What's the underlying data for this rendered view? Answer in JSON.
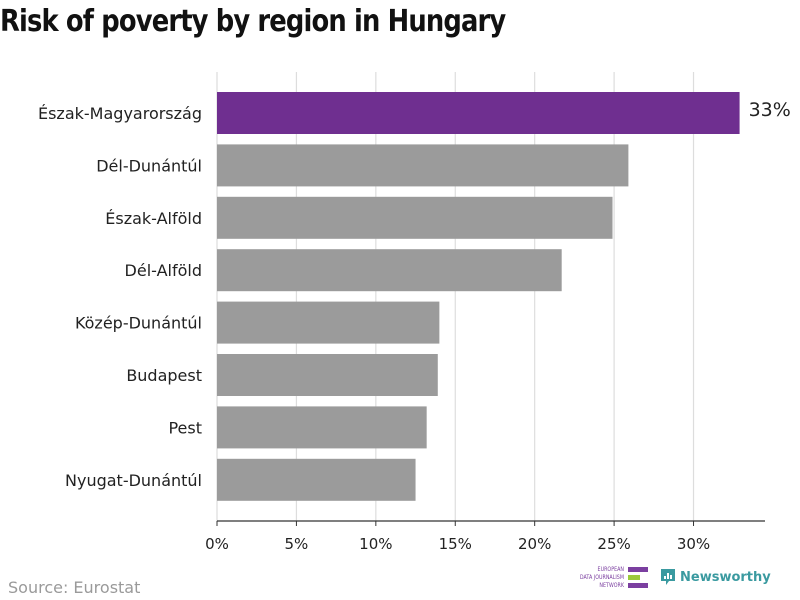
{
  "title": "Risk of poverty by region in Hungary",
  "source": "Source: Eurostat",
  "logos": {
    "edjnet_lines": [
      "EUROPEAN",
      "DATA JOURNALISM",
      "NETWORK"
    ],
    "newsworthy": "Newsworthy"
  },
  "colors": {
    "highlight": "#6f2f90",
    "bar": "#9b9b9b",
    "grid": "#dddddd",
    "axis": "#333333",
    "edjnet_purple": "#7b3fa0",
    "edjnet_green": "#9cc93b",
    "newsworthy": "#3a9aa0"
  },
  "chart_data": {
    "type": "bar",
    "orientation": "horizontal",
    "title": "Risk of poverty by region in Hungary",
    "categories": [
      "Észak-Magyarország",
      "Dél-Dunántúl",
      "Észak-Alföld",
      "Dél-Alföld",
      "Közép-Dunántúl",
      "Budapest",
      "Pest",
      "Nyugat-Dunántúl"
    ],
    "values": [
      32.9,
      25.9,
      24.9,
      21.7,
      14.0,
      13.9,
      13.2,
      12.5
    ],
    "highlight_index": 0,
    "value_labels": [
      "33%",
      "",
      "",
      "",
      "",
      "",
      "",
      ""
    ],
    "xlim": [
      0,
      34.5
    ],
    "xticks": [
      0,
      5,
      10,
      15,
      20,
      25,
      30
    ],
    "xtick_labels": [
      "0%",
      "5%",
      "10%",
      "15%",
      "20%",
      "25%",
      "30%"
    ],
    "xlabel": "",
    "ylabel": "",
    "grid": true,
    "legend": "none"
  }
}
